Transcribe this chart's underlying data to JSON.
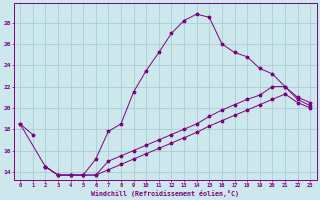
{
  "xlabel": "Windchill (Refroidissement éolien,°C)",
  "bg_color": "#cce8ec",
  "line_color": "#800080",
  "grid_color": "#9fc8d0",
  "xlim": [
    -0.5,
    23.5
  ],
  "ylim": [
    13.2,
    29.8
  ],
  "xticks": [
    0,
    1,
    2,
    3,
    4,
    5,
    6,
    7,
    8,
    9,
    10,
    11,
    12,
    13,
    14,
    15,
    16,
    17,
    18,
    19,
    20,
    21,
    22,
    23
  ],
  "yticks": [
    14,
    16,
    18,
    20,
    22,
    24,
    26,
    28
  ],
  "line1_x": [
    0,
    1
  ],
  "line1_y": [
    18.5,
    17.5
  ],
  "line2_x": [
    2,
    3,
    4,
    5,
    6,
    7,
    8,
    9,
    10,
    11,
    12,
    13,
    14,
    15,
    16,
    17,
    18,
    19,
    20,
    21,
    22,
    23
  ],
  "line2_y": [
    14.5,
    13.7,
    13.7,
    13.7,
    15.2,
    17.8,
    18.5,
    21.5,
    23.5,
    25.2,
    27.0,
    28.2,
    28.8,
    28.5,
    26.0,
    25.2,
    24.8,
    23.7,
    23.2,
    22.0,
    21.0,
    20.5
  ],
  "line3_x": [
    2,
    3,
    4,
    5,
    6,
    7,
    8,
    9,
    10,
    11,
    12,
    13,
    14,
    15,
    16,
    17,
    18,
    19,
    20,
    21,
    22,
    23
  ],
  "line3_y": [
    14.5,
    13.7,
    13.7,
    13.7,
    13.7,
    15.0,
    15.5,
    16.0,
    16.5,
    17.0,
    17.5,
    18.0,
    18.5,
    19.2,
    19.8,
    20.3,
    20.8,
    21.2,
    22.0,
    22.0,
    20.8,
    20.2
  ],
  "line4_x": [
    0,
    2,
    3,
    4,
    5,
    6,
    7,
    8,
    9,
    10,
    11,
    12,
    13,
    14,
    15,
    16,
    17,
    18,
    19,
    20,
    21,
    22,
    23
  ],
  "line4_y": [
    18.5,
    14.5,
    13.7,
    13.7,
    13.7,
    13.7,
    14.2,
    14.7,
    15.2,
    15.7,
    16.2,
    16.7,
    17.2,
    17.7,
    18.3,
    18.8,
    19.3,
    19.8,
    20.3,
    20.8,
    21.3,
    20.5,
    20.0
  ]
}
